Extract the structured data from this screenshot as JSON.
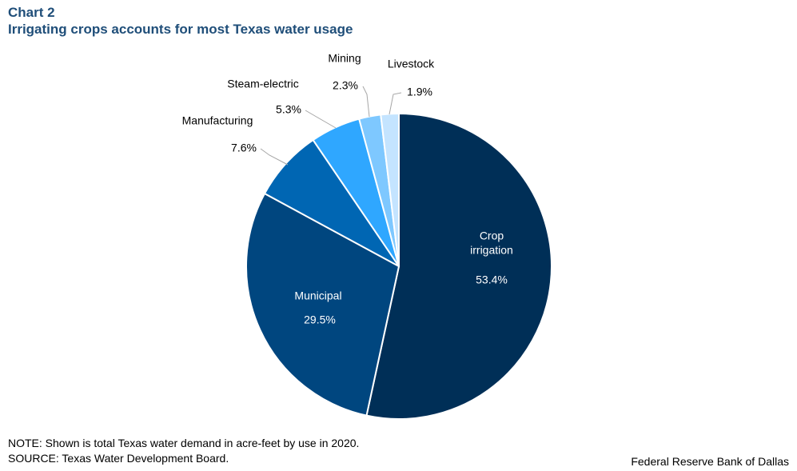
{
  "header": {
    "chart_label": "Chart 2",
    "title": "Irrigating crops accounts for most Texas water usage"
  },
  "footer": {
    "note": "NOTE: Shown is total Texas water demand in acre-feet by use in 2020.",
    "source": "SOURCE: Texas Water Development Board.",
    "credit": "Federal Reserve Bank of Dallas"
  },
  "chart_data": {
    "type": "pie",
    "title": "Irrigating crops accounts for most Texas water usage",
    "start_angle_deg": 0,
    "direction": "clockwise",
    "unit": "%",
    "slices": [
      {
        "label": "Crop irrigation",
        "label_lines": [
          "Crop",
          "irrigation"
        ],
        "value": 53.4,
        "value_label": "53.4%",
        "color": "#002f57",
        "label_inside": true
      },
      {
        "label": "Municipal",
        "label_lines": [
          "Municipal"
        ],
        "value": 29.5,
        "value_label": "29.5%",
        "color": "#00467f",
        "label_inside": true
      },
      {
        "label": "Manufacturing",
        "label_lines": [
          "Manufacturing"
        ],
        "value": 7.6,
        "value_label": "7.6%",
        "color": "#0066b3",
        "label_inside": false
      },
      {
        "label": "Steam-electric",
        "label_lines": [
          "Steam-electric"
        ],
        "value": 5.3,
        "value_label": "5.3%",
        "color": "#2fa7ff",
        "label_inside": false
      },
      {
        "label": "Mining",
        "label_lines": [
          "Mining"
        ],
        "value": 2.3,
        "value_label": "2.3%",
        "color": "#7ec8ff",
        "label_inside": false
      },
      {
        "label": "Livestock",
        "label_lines": [
          "Livestock"
        ],
        "value": 1.9,
        "value_label": "1.9%",
        "color": "#c4e4ff",
        "label_inside": false
      }
    ]
  }
}
